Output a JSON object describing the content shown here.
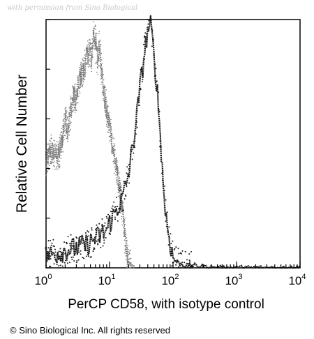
{
  "watermark": "with permission from Sino Biological",
  "copyright": "© Sino Biological Inc. All rights reserved",
  "chart_data": {
    "type": "area",
    "title": "",
    "xlabel": "PerCP CD58, with isotype control",
    "ylabel": "Relative Cell Number",
    "x_scale": "log",
    "xlim": [
      1,
      10000
    ],
    "ylim": [
      0,
      100
    ],
    "x_ticks": [
      {
        "base": "10",
        "exp": "0",
        "value": 1
      },
      {
        "base": "10",
        "exp": "1",
        "value": 10
      },
      {
        "base": "10",
        "exp": "2",
        "value": 100
      },
      {
        "base": "10",
        "exp": "3",
        "value": 1000
      },
      {
        "base": "10",
        "exp": "4",
        "value": 10000
      }
    ],
    "grid": false,
    "legend": "none",
    "series": [
      {
        "style": "dotted-light",
        "color": "#7a7a7a",
        "x": [
          1,
          1.2,
          1.4,
          1.6,
          1.8,
          2,
          2.2,
          2.5,
          2.8,
          3,
          3.3,
          3.6,
          4,
          4.4,
          4.8,
          5.2,
          5.6,
          6,
          6.5,
          7,
          7.5,
          8,
          8.5,
          9,
          10,
          11,
          12,
          13,
          14,
          15,
          16,
          17,
          18,
          19,
          20,
          22,
          25
        ],
        "y": [
          42,
          48,
          45,
          46,
          52,
          60,
          56,
          65,
          70,
          68,
          75,
          78,
          80,
          85,
          88,
          84,
          95,
          92,
          83,
          90,
          80,
          72,
          67,
          62,
          58,
          50,
          44,
          40,
          34,
          28,
          22,
          16,
          10,
          5,
          2,
          1,
          0
        ]
      },
      {
        "style": "dotted-dark",
        "color": "#1a1a1a",
        "x": [
          1,
          1.5,
          2,
          3,
          4,
          5,
          6,
          7,
          8,
          9,
          10,
          11,
          12,
          14,
          16,
          18,
          20,
          22,
          25,
          28,
          30,
          33,
          36,
          40,
          42,
          45,
          48,
          50,
          55,
          60,
          65,
          70,
          75,
          80,
          90,
          100,
          120,
          150,
          200,
          300,
          500,
          1000,
          2000,
          5000,
          10000
        ],
        "y": [
          5,
          6,
          7,
          8,
          9,
          10,
          12,
          13,
          14,
          15,
          18,
          20,
          22,
          25,
          28,
          33,
          38,
          45,
          55,
          65,
          72,
          80,
          88,
          95,
          98,
          97,
          90,
          84,
          75,
          62,
          48,
          34,
          24,
          18,
          10,
          4,
          2,
          1,
          1,
          0.5,
          0,
          0,
          0,
          0,
          0
        ]
      }
    ]
  }
}
